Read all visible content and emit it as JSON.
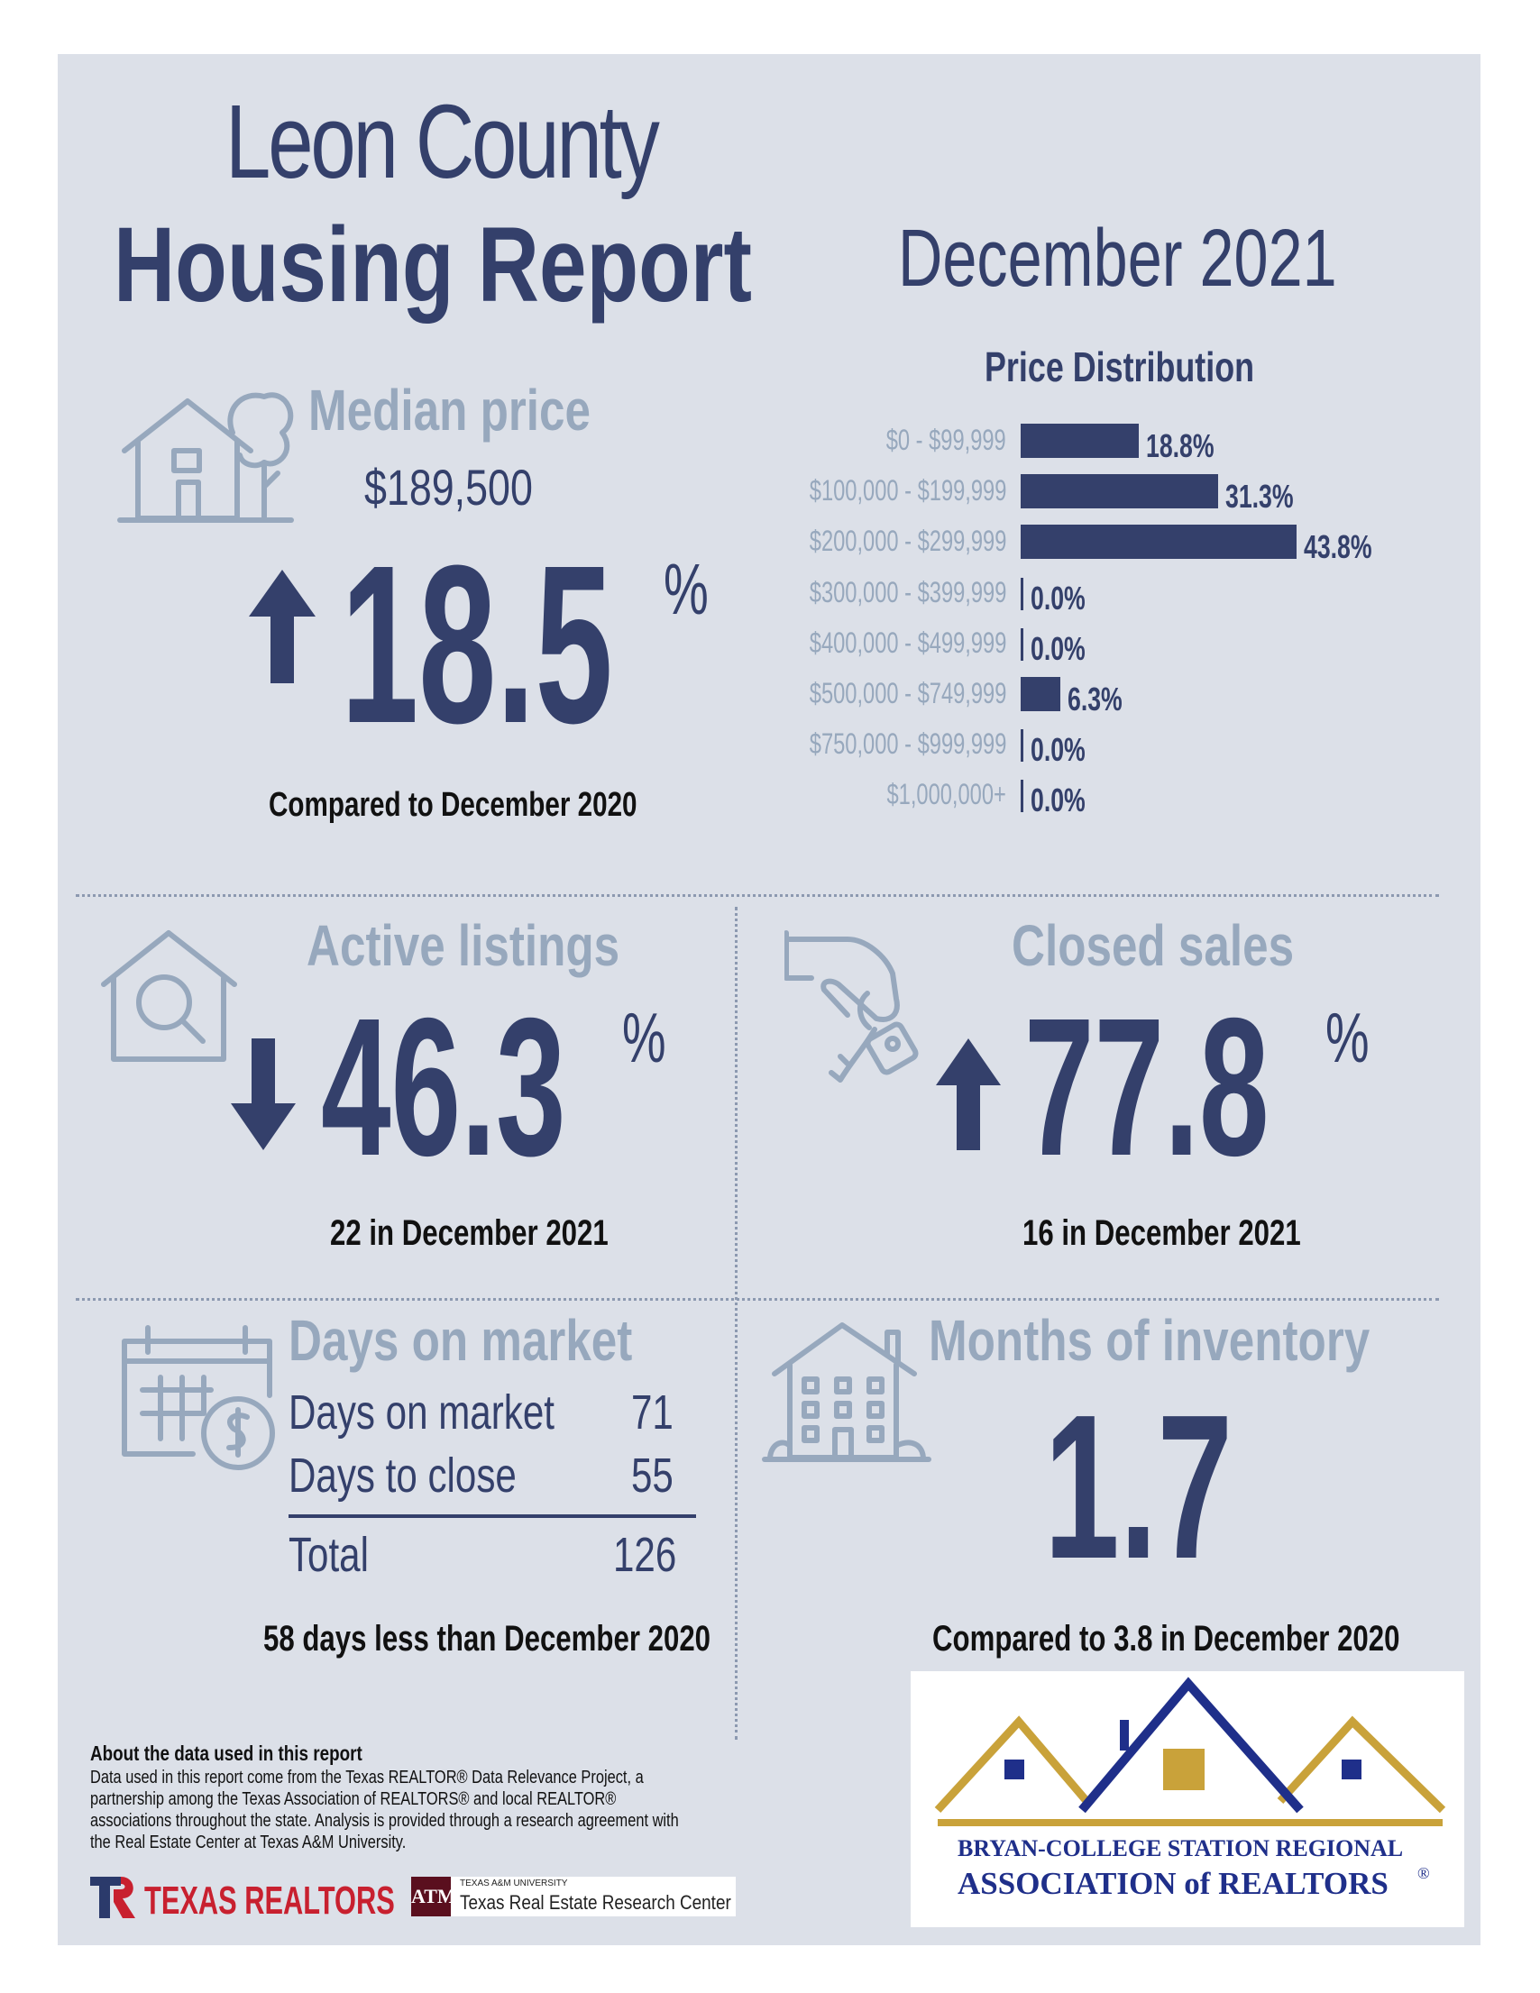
{
  "header": {
    "title_line1": "Leon County",
    "title_line2": "Housing Report",
    "date": "December 2021"
  },
  "median": {
    "heading": "Median price",
    "price": "$189,500",
    "change": "18.5",
    "percent_sign": "%",
    "direction": "up",
    "caption": "Compared to December 2020"
  },
  "distribution": {
    "title": "Price Distribution",
    "rows": [
      {
        "label": "$0 - $99,999",
        "value": "18.8%"
      },
      {
        "label": "$100,000 - $199,999",
        "value": "31.3%"
      },
      {
        "label": "$200,000 - $299,999",
        "value": "43.8%"
      },
      {
        "label": "$300,000 - $399,999",
        "value": "0.0%"
      },
      {
        "label": "$400,000 - $499,999",
        "value": "0.0%"
      },
      {
        "label": "$500,000 - $749,999",
        "value": "6.3%"
      },
      {
        "label": "$750,000 - $999,999",
        "value": "0.0%"
      },
      {
        "label": "$1,000,000+",
        "value": "0.0%"
      }
    ]
  },
  "chart_data": {
    "type": "bar",
    "title": "Price Distribution",
    "categories": [
      "$0 - $99,999",
      "$100,000 - $199,999",
      "$200,000 - $299,999",
      "$300,000 - $399,999",
      "$400,000 - $499,999",
      "$500,000 - $749,999",
      "$750,000 - $999,999",
      "$1,000,000+"
    ],
    "values": [
      18.8,
      31.3,
      43.8,
      0.0,
      0.0,
      6.3,
      0.0,
      0.0
    ],
    "orientation": "horizontal",
    "xlim": [
      0,
      43.8
    ]
  },
  "active": {
    "heading": "Active listings",
    "change": "46.3",
    "percent_sign": "%",
    "direction": "down",
    "caption": "22 in December 2021"
  },
  "closed": {
    "heading": "Closed sales",
    "change": "77.8",
    "percent_sign": "%",
    "direction": "up",
    "caption": "16 in December 2021"
  },
  "dom": {
    "heading": "Days on market",
    "rows": [
      {
        "label": "Days on market",
        "value": "71"
      },
      {
        "label": "Days to close",
        "value": "55"
      }
    ],
    "total_label": "Total",
    "total_value": "126",
    "caption": "58 days less than December 2020"
  },
  "inventory": {
    "heading": "Months of inventory",
    "value": "1.7",
    "caption": "Compared to 3.8 in December 2020"
  },
  "about": {
    "title": "About the data used in this report",
    "text": "Data used in this report come from the Texas REALTOR® Data Relevance Project, a partnership among the Texas Association of REALTORS® and local REALTOR® associations throughout the state. Analysis is provided through a research agreement with the Real Estate Center at Texas A&M University."
  },
  "logos": {
    "texas_realtors": "TEXAS REALTORS",
    "tamu_small": "TEXAS A&M UNIVERSITY",
    "tamu_center": "Texas Real Estate Research Center",
    "bcs_line1": "BRYAN-COLLEGE STATION REGIONAL",
    "bcs_line2": "ASSOCIATION of REALTORS",
    "bcs_reg": "®"
  },
  "colors": {
    "navy": "#34406b",
    "light": "#97a8bd",
    "background": "#dce0e8",
    "gold": "#c9a23a",
    "logo_navy": "#1f2f8a"
  }
}
